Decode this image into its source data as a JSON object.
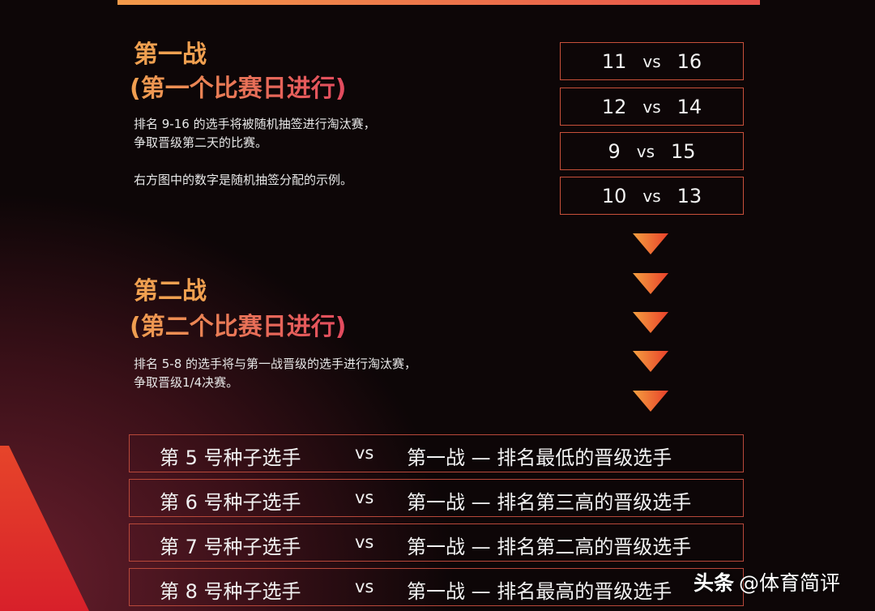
{
  "round1": {
    "title": "第一战",
    "subtitle": "(第一个比赛日进行)",
    "desc_line1": "排名 9-16 的选手将被随机抽签进行淘汰赛，",
    "desc_line2": "争取晋级第二天的比赛。",
    "note": "右方图中的数字是随机抽签分配的示例。",
    "matches": [
      {
        "a": "11",
        "vs": "vs",
        "b": "16"
      },
      {
        "a": "12",
        "vs": "vs",
        "b": "14"
      },
      {
        "a": "9",
        "vs": "vs",
        "b": "15"
      },
      {
        "a": "10",
        "vs": "vs",
        "b": "13"
      }
    ]
  },
  "round2": {
    "title": "第二战",
    "subtitle": "(第二个比赛日进行)",
    "desc_line1": "排名 5-8 的选手将与第一战晋级的选手进行淘汰赛，",
    "desc_line2": "争取晋级1/4决赛。",
    "matches": [
      {
        "seed": "第 5 号种子选手",
        "vs": "vs",
        "opponent": "第一战 — 排名最低的晋级选手"
      },
      {
        "seed": "第 6 号种子选手",
        "vs": "vs",
        "opponent": "第一战 — 排名第三高的晋级选手"
      },
      {
        "seed": "第 7 号种子选手",
        "vs": "vs",
        "opponent": "第一战 — 排名第二高的晋级选手"
      },
      {
        "seed": "第 8 号种子选手",
        "vs": "vs",
        "opponent": "第一战 — 排名最高的晋级选手"
      }
    ]
  },
  "watermark": {
    "brand": "头条",
    "account": "@体育简评"
  },
  "colors": {
    "accent_orange": "#f0a050",
    "accent_red": "#e24a5e",
    "border": "#c8503a"
  }
}
